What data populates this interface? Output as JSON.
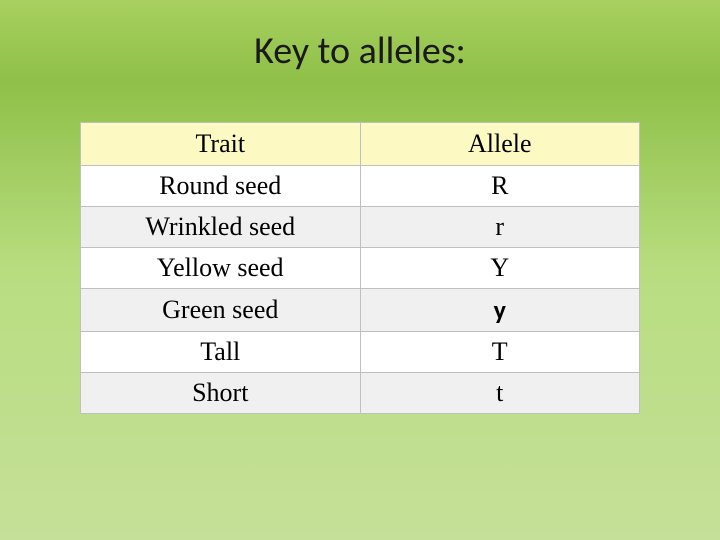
{
  "title": "Key to alleles:",
  "table": {
    "type": "table",
    "background_color": "#ffffff",
    "header_background": "#fcfac2",
    "border_color": "#bfbfbf",
    "alt_row_background": "#f0f0f0",
    "font_family_body": "Times New Roman",
    "font_size_pt": 20,
    "columns": [
      {
        "label": "Trait",
        "width": "50%",
        "align": "center"
      },
      {
        "label": "Allele",
        "width": "50%",
        "align": "center"
      }
    ],
    "rows": [
      {
        "trait": "Round seed",
        "allele": "R",
        "alt": false,
        "allele_bold_sans": false
      },
      {
        "trait": "Wrinkled seed",
        "allele": "r",
        "alt": true,
        "allele_bold_sans": false
      },
      {
        "trait": "Yellow seed",
        "allele": "Y",
        "alt": false,
        "allele_bold_sans": false
      },
      {
        "trait": "Green seed",
        "allele": "y",
        "alt": true,
        "allele_bold_sans": true
      },
      {
        "trait": "Tall",
        "allele": "T",
        "alt": false,
        "allele_bold_sans": false
      },
      {
        "trait": "Short",
        "allele": "t",
        "alt": true,
        "allele_bold_sans": false
      }
    ]
  },
  "slide_background": {
    "gradient_stops": [
      "#a8d060",
      "#8fc048",
      "#b8dd80",
      "#c5e098"
    ]
  }
}
